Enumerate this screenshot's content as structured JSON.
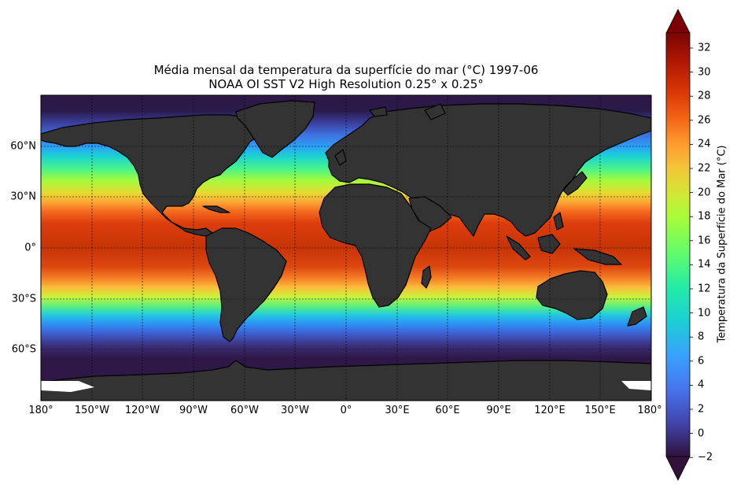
{
  "title_line1": "Média mensal da temperatura da superfície do mar (°C) 1997-06",
  "title_line2": "NOAA OI SST V2 High Resolution 0.25° x 0.25°",
  "x_ticks": [
    "180°",
    "150°W",
    "120°W",
    "90°W",
    "60°W",
    "30°W",
    "0°",
    "30°E",
    "60°E",
    "90°E",
    "120°E",
    "150°E",
    "180°"
  ],
  "y_ticks": [
    "60°N",
    "30°N",
    "0°",
    "30°S",
    "60°S"
  ],
  "colorbar": {
    "label": "Temperatura da Superfície do Mar (°C)",
    "ticks": [
      "32",
      "30",
      "28",
      "26",
      "24",
      "22",
      "20",
      "18",
      "16",
      "14",
      "12",
      "10",
      "8",
      "6",
      "4",
      "2",
      "0",
      "−2"
    ],
    "min": -2,
    "max": 33,
    "extend": "both",
    "colormap": "turbo"
  },
  "colors": {
    "land": "#333333",
    "coastline": "#000000",
    "grid": "#000000"
  }
}
